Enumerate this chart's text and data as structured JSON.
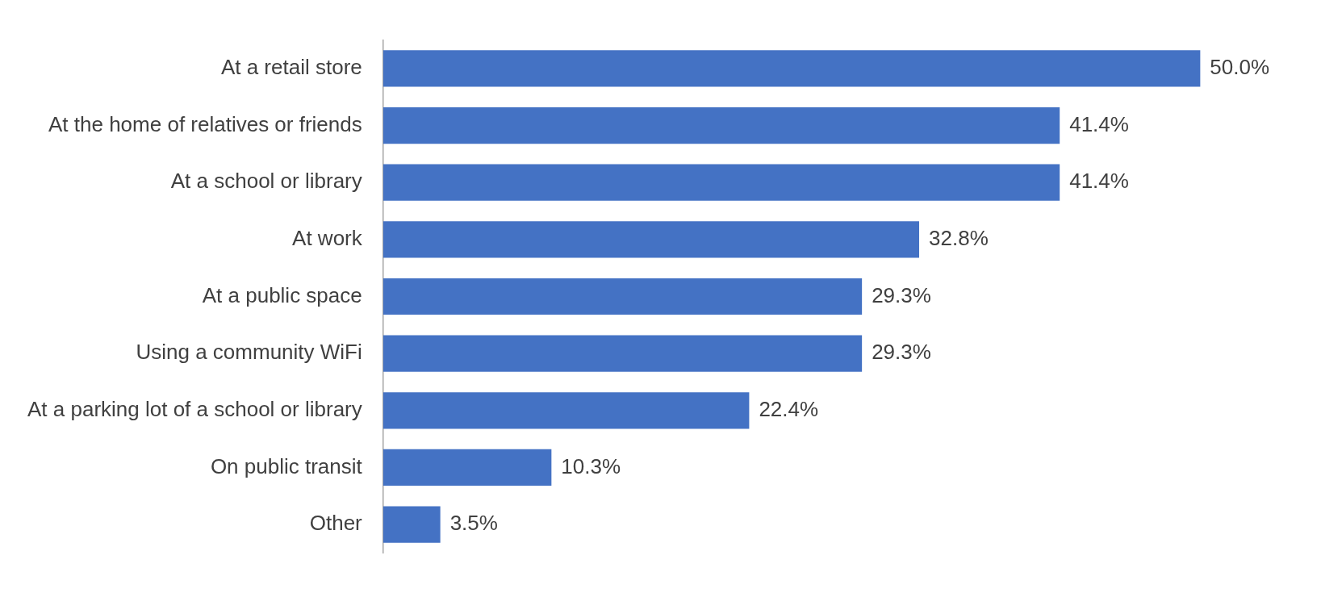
{
  "chart_data": {
    "type": "bar",
    "orientation": "horizontal",
    "categories": [
      "At a retail store",
      "At the home of relatives or friends",
      "At a school or library",
      "At work",
      "At a public space",
      "Using a community WiFi",
      "At a parking lot of a school or library",
      "On public transit",
      "Other"
    ],
    "values": [
      50.0,
      41.4,
      41.4,
      32.8,
      29.3,
      29.3,
      22.4,
      10.3,
      3.5
    ],
    "value_labels": [
      "50.0%",
      "41.4%",
      "41.4%",
      "32.8%",
      "29.3%",
      "29.3%",
      "22.4%",
      "10.3%",
      "3.5%"
    ],
    "color": "#4472c4"
  }
}
